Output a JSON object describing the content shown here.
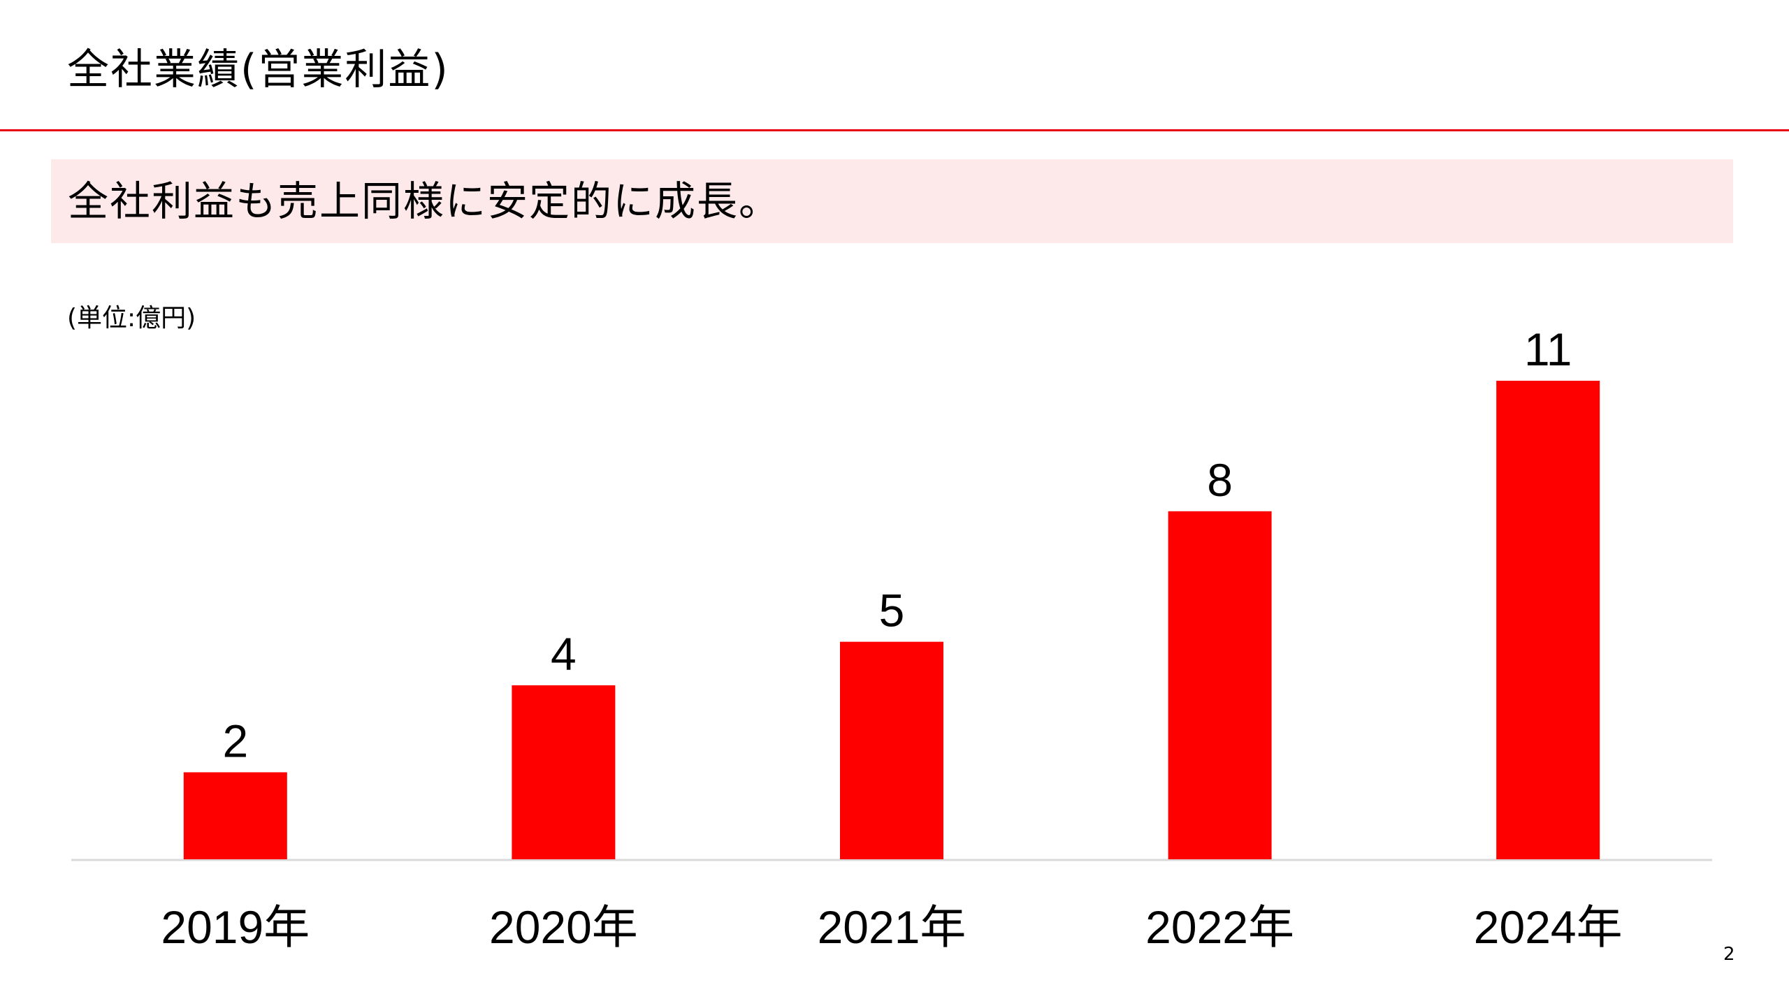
{
  "header": {
    "title": "全社業績(営業利益)"
  },
  "message": {
    "text": "全社利益も売上同様に安定的に成長。"
  },
  "page_number": "2",
  "colors": {
    "accent": "#e60012",
    "bar": "#ff0000",
    "message_bg": "#fde8ea",
    "baseline": "#d9d9d9"
  },
  "chart_data": {
    "type": "bar",
    "unit_label": "(単位:億円)",
    "categories": [
      "2019年",
      "2020年",
      "2021年",
      "2022年",
      "2024年"
    ],
    "values": [
      2,
      4,
      5,
      8,
      11
    ],
    "data_labels": [
      "2",
      "4",
      "5",
      "8",
      "11"
    ],
    "ylim": [
      0,
      11
    ],
    "grid": false,
    "legend": "none"
  }
}
